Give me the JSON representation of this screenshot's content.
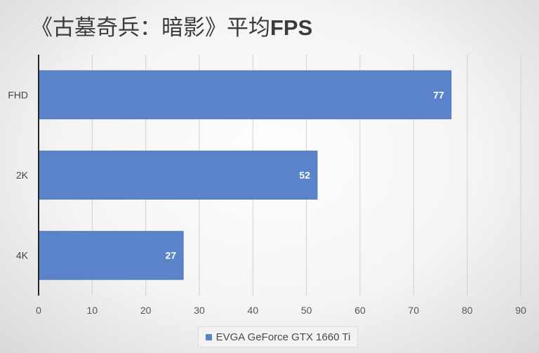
{
  "chart_data": {
    "type": "bar",
    "orientation": "horizontal",
    "title_main": "《古墓奇兵：暗影》平均",
    "title_suffix": "FPS",
    "categories": [
      "FHD",
      "2K",
      "4K"
    ],
    "series": [
      {
        "name": "EVGA GeForce GTX 1660 Ti",
        "values": [
          77,
          52,
          27
        ],
        "color": "#5b83ca"
      }
    ],
    "xlim": [
      0,
      90
    ],
    "xticks": [
      "0",
      "10",
      "20",
      "30",
      "40",
      "50",
      "60",
      "70",
      "80",
      "90"
    ],
    "grid": true,
    "data_labels": true,
    "legend_position": "bottom"
  }
}
